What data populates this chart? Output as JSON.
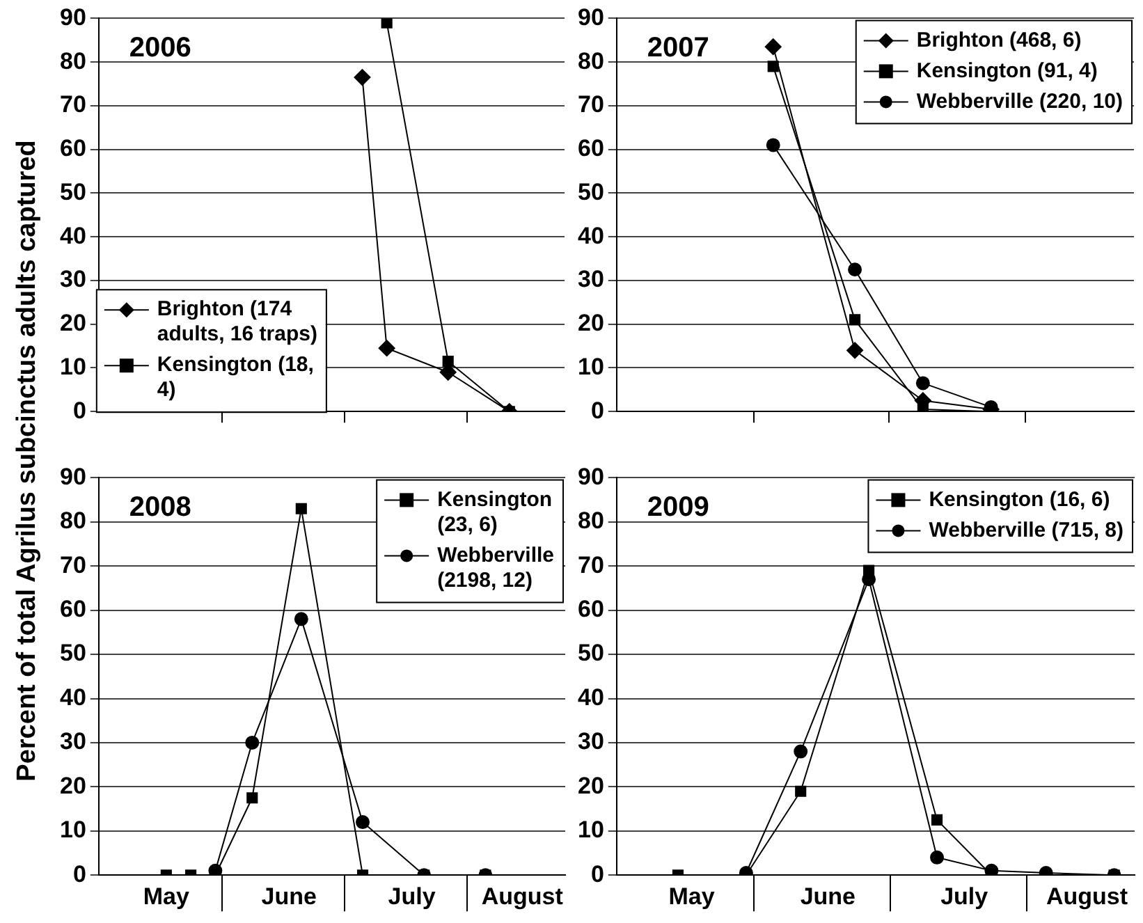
{
  "chart_data": [
    {
      "type": "line",
      "title": "2006",
      "ylabel": "Percent of total Agrilus subcinctus adults captured",
      "categories": [
        null,
        null,
        null,
        null,
        null,
        null,
        null,
        null,
        null,
        null,
        null,
        null,
        null,
        null,
        null,
        null,
        null,
        null,
        null,
        null,
        null,
        null,
        null,
        null,
        null,
        null,
        null,
        null,
        null,
        null,
        null,
        null,
        null,
        null,
        null,
        null,
        null,
        null
      ],
      "ylim": [
        0,
        90
      ],
      "yticks": [
        0,
        10,
        20,
        30,
        40,
        50,
        60,
        70,
        80,
        90
      ],
      "grid": "y",
      "legend": "bottom left",
      "tick_labels": "y",
      "series": [
        {
          "name": "Brighton (174 adults, 16 traps)",
          "color": "#000000",
          "marker": "diamond",
          "values": [
            null,
            null,
            null,
            null,
            null,
            null,
            null,
            null,
            null,
            null,
            null,
            null,
            null,
            null,
            null,
            null,
            null,
            null,
            null,
            null,
            null,
            76.5,
            null,
            14.5,
            null,
            null,
            null,
            null,
            9,
            null,
            null,
            null,
            null,
            0,
            null,
            null,
            null,
            null
          ]
        },
        {
          "name": "Kensington (18, 4)",
          "color": "#000000",
          "marker": "square",
          "values": [
            null,
            null,
            null,
            null,
            null,
            null,
            null,
            null,
            null,
            null,
            null,
            null,
            null,
            null,
            null,
            null,
            null,
            null,
            null,
            null,
            null,
            null,
            null,
            89,
            null,
            null,
            null,
            null,
            11.5,
            null,
            null,
            null,
            null,
            0,
            null,
            null,
            null,
            null
          ]
        }
      ]
    },
    {
      "type": "line",
      "title": "2007",
      "categories": [
        null,
        null,
        null,
        null,
        null,
        null,
        null,
        null,
        null,
        null,
        null,
        null,
        null,
        null,
        null,
        null,
        null,
        null,
        null,
        null,
        null,
        null,
        null,
        null,
        null,
        null,
        null,
        null,
        null,
        null,
        null,
        null,
        null,
        null,
        null,
        null,
        null,
        null
      ],
      "ylim": [
        0,
        90
      ],
      "yticks": [
        0,
        10,
        20,
        30,
        40,
        50,
        60,
        70,
        80,
        90
      ],
      "grid": "y",
      "legend": "top right",
      "tick_labels": "y",
      "series": [
        {
          "name": "Brighton (468, 6)",
          "color": "#000000",
          "marker": "diamond",
          "values": [
            null,
            null,
            null,
            null,
            null,
            null,
            null,
            null,
            null,
            null,
            null,
            83.5,
            null,
            null,
            null,
            null,
            null,
            14,
            null,
            null,
            null,
            null,
            2.5,
            null,
            null,
            null,
            null,
            0.5,
            null,
            null,
            null,
            null,
            null,
            null,
            null,
            null,
            null,
            null
          ]
        },
        {
          "name": "Kensington (91, 4)",
          "color": "#000000",
          "marker": "square",
          "values": [
            null,
            null,
            null,
            null,
            null,
            null,
            null,
            null,
            null,
            null,
            null,
            79,
            null,
            null,
            null,
            null,
            null,
            21,
            null,
            null,
            null,
            null,
            0.5,
            null,
            null,
            null,
            null,
            0,
            null,
            null,
            null,
            null,
            null,
            null,
            null,
            null,
            null,
            null
          ]
        },
        {
          "name": "Webberville (220, 10)",
          "color": "#000000",
          "marker": "circle",
          "values": [
            null,
            null,
            null,
            null,
            null,
            null,
            null,
            null,
            null,
            null,
            null,
            61,
            null,
            null,
            null,
            null,
            null,
            32.5,
            null,
            null,
            null,
            null,
            6.5,
            null,
            null,
            null,
            null,
            1,
            null,
            null,
            null,
            null,
            null,
            null,
            null,
            null,
            null,
            null
          ]
        }
      ]
    },
    {
      "type": "line",
      "title": "2008",
      "categories": [
        null,
        null,
        null,
        null,
        null,
        "May",
        null,
        null,
        null,
        null,
        null,
        null,
        null,
        null,
        null,
        "June",
        null,
        null,
        null,
        null,
        null,
        null,
        null,
        null,
        null,
        "July",
        null,
        null,
        null,
        null,
        null,
        null,
        null,
        null,
        "August",
        null,
        null,
        null
      ],
      "ylim": [
        0,
        90
      ],
      "yticks": [
        0,
        10,
        20,
        30,
        40,
        50,
        60,
        70,
        80,
        90
      ],
      "grid": "y",
      "legend": "top right",
      "series": [
        {
          "name": "Kensington (23, 6)",
          "color": "#000000",
          "marker": "square",
          "values": [
            null,
            null,
            null,
            null,
            null,
            0,
            null,
            0,
            null,
            0,
            null,
            null,
            17.5,
            null,
            null,
            null,
            83,
            null,
            null,
            null,
            null,
            0,
            null,
            null,
            null,
            null,
            0,
            null,
            null,
            null,
            null,
            0,
            null,
            null,
            null,
            null,
            null,
            null
          ]
        },
        {
          "name": "Webberville (2198, 12)",
          "color": "#000000",
          "marker": "circle",
          "values": [
            null,
            null,
            null,
            null,
            null,
            null,
            null,
            null,
            null,
            1,
            null,
            null,
            30,
            null,
            null,
            null,
            58,
            null,
            null,
            null,
            null,
            12,
            null,
            null,
            null,
            null,
            0,
            null,
            null,
            null,
            null,
            0,
            null,
            null,
            null,
            null,
            null,
            null
          ]
        }
      ]
    },
    {
      "type": "line",
      "title": "2009",
      "categories": [
        null,
        null,
        null,
        null,
        null,
        "May",
        null,
        null,
        null,
        null,
        null,
        null,
        null,
        null,
        null,
        "June",
        null,
        null,
        null,
        null,
        null,
        null,
        null,
        null,
        null,
        "July",
        null,
        null,
        null,
        null,
        null,
        null,
        null,
        null,
        "August",
        null,
        null,
        null
      ],
      "ylim": [
        0,
        90
      ],
      "yticks": [
        0,
        10,
        20,
        30,
        40,
        50,
        60,
        70,
        80,
        90
      ],
      "grid": "y",
      "legend": "top right",
      "series": [
        {
          "name": "Kensington (16, 6)",
          "color": "#000000",
          "marker": "square",
          "values": [
            null,
            null,
            null,
            null,
            0,
            null,
            null,
            null,
            null,
            0,
            null,
            null,
            null,
            19,
            null,
            null,
            null,
            null,
            69,
            null,
            null,
            null,
            null,
            12.5,
            null,
            null,
            null,
            0,
            null,
            null,
            null,
            0,
            null,
            null,
            null,
            null,
            0,
            null
          ]
        },
        {
          "name": "Webberville (715, 8)",
          "color": "#000000",
          "marker": "circle",
          "values": [
            null,
            null,
            null,
            null,
            null,
            null,
            null,
            null,
            null,
            0.5,
            null,
            null,
            null,
            28,
            null,
            null,
            null,
            null,
            67,
            null,
            null,
            null,
            null,
            4,
            null,
            null,
            null,
            1,
            null,
            null,
            null,
            0.5,
            null,
            null,
            null,
            null,
            0,
            null
          ]
        }
      ]
    }
  ]
}
